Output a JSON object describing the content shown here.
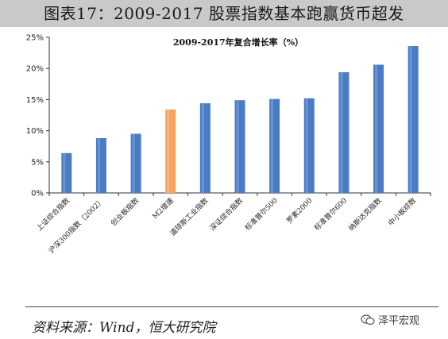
{
  "figure_title": "图表17：2009-2017 股票指数基本跑赢货币超发",
  "source": "资料来源：Wind，恒大研究院",
  "watermark": "泽平宏观",
  "colors": {
    "bar": "#4a7cc6",
    "highlight": "#f4a460",
    "axis": "#333333"
  },
  "chart_data": {
    "type": "bar",
    "title": "2009-2017年复合增长率（%）",
    "categories": [
      "上证综合指数",
      "沪深300指数（2002）",
      "创业板指数",
      "M2增速",
      "道琼斯工业指数",
      "深证综合指数",
      "标准普尔500",
      "罗素2000",
      "标准普尔600",
      "纳斯达克指数",
      "中小板综数"
    ],
    "values": [
      6.4,
      8.8,
      9.5,
      13.4,
      14.4,
      14.9,
      15.1,
      15.2,
      19.4,
      20.6,
      23.6
    ],
    "highlight_index": 3,
    "ylim": [
      0,
      25
    ],
    "yticks": [
      0,
      5,
      10,
      15,
      20,
      25
    ],
    "ytick_labels": [
      "0%",
      "5%",
      "10%",
      "15%",
      "20%",
      "25%"
    ],
    "xlabel": "",
    "ylabel": "",
    "grid": false
  }
}
